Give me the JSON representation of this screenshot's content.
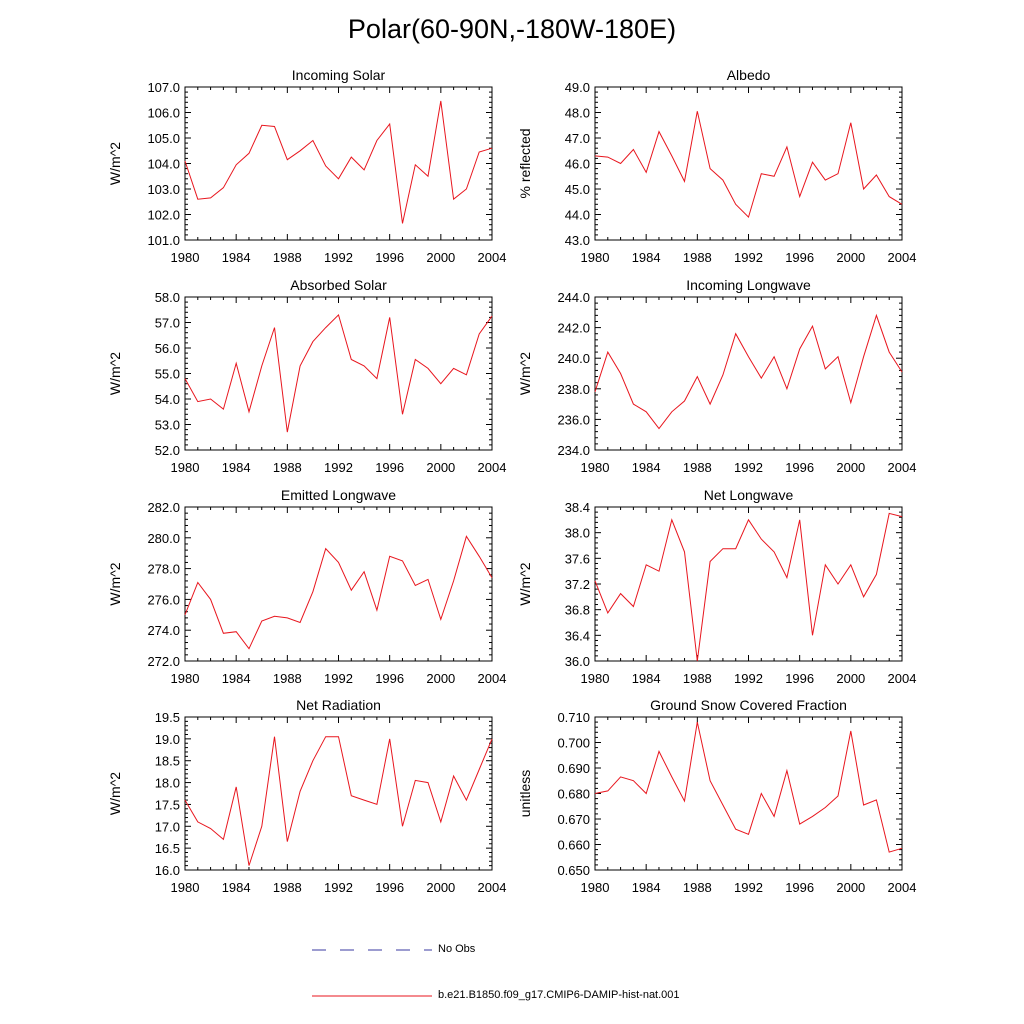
{
  "page": {
    "title": "Polar(60-90N,-180W-180E)"
  },
  "legend": {
    "obs_label": "No Obs",
    "model_label": "b.e21.B1850.f09_g17.CMIP6-DAMIP-hist-nat.001",
    "obs_color": "#3a3aa0",
    "model_color": "#e8161e"
  },
  "chart_data": [
    {
      "type": "line",
      "title": "Incoming Solar",
      "ylabel": "W/m^2",
      "xlim": [
        1980,
        2004
      ],
      "ylim": [
        101.0,
        107.0
      ],
      "yticks": [
        "101.0",
        "102.0",
        "103.0",
        "104.0",
        "105.0",
        "106.0",
        "107.0"
      ],
      "xticks": [
        "1980",
        "1984",
        "1988",
        "1992",
        "1996",
        "2000",
        "2004"
      ],
      "x": [
        1980,
        1981,
        1982,
        1983,
        1984,
        1985,
        1986,
        1987,
        1988,
        1989,
        1990,
        1991,
        1992,
        1993,
        1994,
        1995,
        1996,
        1997,
        1998,
        1999,
        2000,
        2001,
        2002,
        2003,
        2004
      ],
      "y": [
        104.1,
        102.6,
        102.65,
        103.05,
        103.95,
        104.4,
        105.5,
        105.45,
        104.15,
        104.5,
        104.9,
        103.9,
        103.4,
        104.25,
        103.75,
        104.9,
        105.55,
        101.65,
        103.95,
        103.5,
        106.45,
        102.6,
        103.0,
        104.45,
        104.6
      ]
    },
    {
      "type": "line",
      "title": "Albedo",
      "ylabel": "% reflected",
      "xlim": [
        1980,
        2004
      ],
      "ylim": [
        43.0,
        49.0
      ],
      "yticks": [
        "43.0",
        "44.0",
        "45.0",
        "46.0",
        "47.0",
        "48.0",
        "49.0"
      ],
      "xticks": [
        "1980",
        "1984",
        "1988",
        "1992",
        "1996",
        "2000",
        "2004"
      ],
      "x": [
        1980,
        1981,
        1982,
        1983,
        1984,
        1985,
        1986,
        1987,
        1988,
        1989,
        1990,
        1991,
        1992,
        1993,
        1994,
        1995,
        1996,
        1997,
        1998,
        1999,
        2000,
        2001,
        2002,
        2003,
        2004
      ],
      "y": [
        46.3,
        46.25,
        46.0,
        46.55,
        45.65,
        47.25,
        46.3,
        45.3,
        48.05,
        45.8,
        45.35,
        44.4,
        43.9,
        45.6,
        45.5,
        46.65,
        44.7,
        46.05,
        45.35,
        45.6,
        47.6,
        45.0,
        45.55,
        44.7,
        44.4
      ]
    },
    {
      "type": "line",
      "title": "Absorbed Solar",
      "ylabel": "W/m^2",
      "xlim": [
        1980,
        2004
      ],
      "ylim": [
        52.0,
        58.0
      ],
      "yticks": [
        "52.0",
        "53.0",
        "54.0",
        "55.0",
        "56.0",
        "57.0",
        "58.0"
      ],
      "xticks": [
        "1980",
        "1984",
        "1988",
        "1992",
        "1996",
        "2000",
        "2004"
      ],
      "x": [
        1980,
        1981,
        1982,
        1983,
        1984,
        1985,
        1986,
        1987,
        1988,
        1989,
        1990,
        1991,
        1992,
        1993,
        1994,
        1995,
        1996,
        1997,
        1998,
        1999,
        2000,
        2001,
        2002,
        2003,
        2004
      ],
      "y": [
        54.8,
        53.9,
        54.0,
        53.6,
        55.4,
        53.5,
        55.3,
        56.8,
        52.7,
        55.3,
        56.25,
        56.8,
        57.3,
        55.55,
        55.3,
        54.8,
        57.2,
        53.4,
        55.55,
        55.2,
        54.6,
        55.2,
        54.95,
        56.55,
        57.25
      ]
    },
    {
      "type": "line",
      "title": "Incoming Longwave",
      "ylabel": "W/m^2",
      "xlim": [
        1980,
        2004
      ],
      "ylim": [
        234.0,
        244.0
      ],
      "yticks": [
        "234.0",
        "236.0",
        "238.0",
        "240.0",
        "242.0",
        "244.0"
      ],
      "xticks": [
        "1980",
        "1984",
        "1988",
        "1992",
        "1996",
        "2000",
        "2004"
      ],
      "x": [
        1980,
        1981,
        1982,
        1983,
        1984,
        1985,
        1986,
        1987,
        1988,
        1989,
        1990,
        1991,
        1992,
        1993,
        1994,
        1995,
        1996,
        1997,
        1998,
        1999,
        2000,
        2001,
        2002,
        2003,
        2004
      ],
      "y": [
        237.8,
        240.4,
        239.0,
        237.0,
        236.5,
        235.4,
        236.5,
        237.2,
        238.8,
        237.0,
        238.9,
        241.6,
        240.1,
        238.7,
        240.1,
        238.0,
        240.6,
        242.1,
        239.3,
        240.1,
        237.1,
        240.1,
        242.8,
        240.4,
        239.1
      ]
    },
    {
      "type": "line",
      "title": "Emitted Longwave",
      "ylabel": "W/m^2",
      "xlim": [
        1980,
        2004
      ],
      "ylim": [
        272.0,
        282.0
      ],
      "yticks": [
        "272.0",
        "274.0",
        "276.0",
        "278.0",
        "280.0",
        "282.0"
      ],
      "xticks": [
        "1980",
        "1984",
        "1988",
        "1992",
        "1996",
        "2000",
        "2004"
      ],
      "x": [
        1980,
        1981,
        1982,
        1983,
        1984,
        1985,
        1986,
        1987,
        1988,
        1989,
        1990,
        1991,
        1992,
        1993,
        1994,
        1995,
        1996,
        1997,
        1998,
        1999,
        2000,
        2001,
        2002,
        2003,
        2004
      ],
      "y": [
        275.0,
        277.1,
        276.0,
        273.8,
        273.9,
        272.8,
        274.6,
        274.9,
        274.8,
        274.5,
        276.5,
        279.3,
        278.4,
        276.6,
        277.8,
        275.3,
        278.8,
        278.5,
        276.9,
        277.3,
        274.7,
        277.2,
        280.1,
        278.8,
        277.4
      ]
    },
    {
      "type": "line",
      "title": "Net Longwave",
      "ylabel": "W/m^2",
      "xlim": [
        1980,
        2004
      ],
      "ylim": [
        36.0,
        38.4
      ],
      "yticks": [
        "36.0",
        "36.4",
        "36.8",
        "37.2",
        "37.6",
        "38.0",
        "38.4"
      ],
      "xticks": [
        "1980",
        "1984",
        "1988",
        "1992",
        "1996",
        "2000",
        "2004"
      ],
      "x": [
        1980,
        1981,
        1982,
        1983,
        1984,
        1985,
        1986,
        1987,
        1988,
        1989,
        1990,
        1991,
        1992,
        1993,
        1994,
        1995,
        1996,
        1997,
        1998,
        1999,
        2000,
        2001,
        2002,
        2003,
        2004
      ],
      "y": [
        37.25,
        36.75,
        37.05,
        36.85,
        37.5,
        37.4,
        38.2,
        37.7,
        36.0,
        37.55,
        37.75,
        37.75,
        38.2,
        37.9,
        37.7,
        37.3,
        38.2,
        36.4,
        37.5,
        37.2,
        37.5,
        37.0,
        37.35,
        38.3,
        38.25
      ]
    },
    {
      "type": "line",
      "title": "Net Radiation",
      "ylabel": "W/m^2",
      "xlim": [
        1980,
        2004
      ],
      "ylim": [
        16.0,
        19.5
      ],
      "yticks": [
        "16.0",
        "16.5",
        "17.0",
        "17.5",
        "18.0",
        "18.5",
        "19.0",
        "19.5"
      ],
      "xticks": [
        "1980",
        "1984",
        "1988",
        "1992",
        "1996",
        "2000",
        "2004"
      ],
      "x": [
        1980,
        1981,
        1982,
        1983,
        1984,
        1985,
        1986,
        1987,
        1988,
        1989,
        1990,
        1991,
        1992,
        1993,
        1994,
        1995,
        1996,
        1997,
        1998,
        1999,
        2000,
        2001,
        2002,
        2003,
        2004
      ],
      "y": [
        17.6,
        17.1,
        16.95,
        16.7,
        17.9,
        16.1,
        17.0,
        19.05,
        16.65,
        17.8,
        18.5,
        19.05,
        19.05,
        17.7,
        17.6,
        17.5,
        19.0,
        17.0,
        18.05,
        18.0,
        17.1,
        18.15,
        17.6,
        18.3,
        19.0
      ]
    },
    {
      "type": "line",
      "title": "Ground Snow Covered Fraction",
      "ylabel": "unitless",
      "xlim": [
        1980,
        2004
      ],
      "ylim": [
        0.65,
        0.71
      ],
      "yticks": [
        "0.650",
        "0.660",
        "0.670",
        "0.680",
        "0.690",
        "0.700",
        "0.710"
      ],
      "xticks": [
        "1980",
        "1984",
        "1988",
        "1992",
        "1996",
        "2000",
        "2004"
      ],
      "x": [
        1980,
        1981,
        1982,
        1983,
        1984,
        1985,
        1986,
        1987,
        1988,
        1989,
        1990,
        1991,
        1992,
        1993,
        1994,
        1995,
        1996,
        1997,
        1998,
        1999,
        2000,
        2001,
        2002,
        2003,
        2004
      ],
      "y": [
        0.68,
        0.681,
        0.6865,
        0.685,
        0.68,
        0.6965,
        0.6865,
        0.677,
        0.708,
        0.685,
        0.6755,
        0.666,
        0.664,
        0.68,
        0.671,
        0.689,
        0.668,
        0.671,
        0.6745,
        0.679,
        0.7045,
        0.6755,
        0.6775,
        0.657,
        0.6585
      ]
    }
  ]
}
